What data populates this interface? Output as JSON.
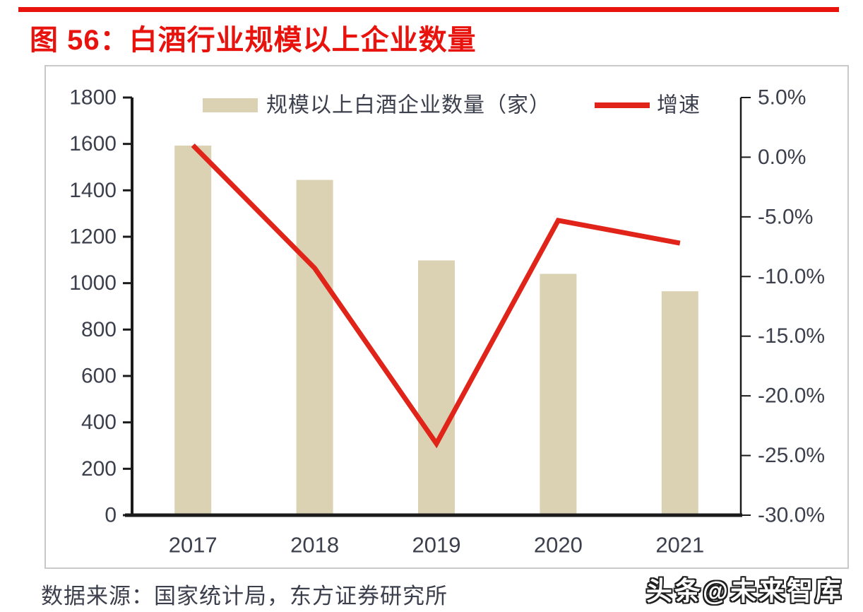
{
  "page": {
    "title": "图 56：白酒行业规模以上企业数量",
    "source": "数据来源：国家统计局，东方证券研究所",
    "watermark": "头条@未来智库"
  },
  "colors": {
    "accent_red": "#e8130d",
    "line_red": "#e02419",
    "bar_fill": "#dbd2b3",
    "axis_text": "#3c3f4c",
    "axis_line": "#1b1b1b",
    "panel_border": "#c9c9c9"
  },
  "chart_data": {
    "type": "bar",
    "subtype": "combo-bar-line",
    "title": "白酒行业规模以上企业数量",
    "categories": [
      "2017",
      "2018",
      "2019",
      "2020",
      "2021"
    ],
    "series": [
      {
        "name": "规模以上白酒企业数量（家）",
        "type": "bar",
        "axis": "left",
        "values": [
          1593,
          1445,
          1098,
          1040,
          965
        ]
      },
      {
        "name": "增速",
        "type": "line",
        "axis": "right",
        "unit": "%",
        "values": [
          1.0,
          -9.3,
          -24.0,
          -5.3,
          -7.2
        ]
      }
    ],
    "left_axis": {
      "min": 0,
      "max": 1800,
      "step": 200,
      "tick_labels": [
        "1800",
        "1600",
        "1400",
        "1200",
        "1000",
        "800",
        "600",
        "400",
        "200",
        "0"
      ]
    },
    "right_axis": {
      "min": -30,
      "max": 5,
      "step": 5,
      "tick_labels": [
        "5.0%",
        "0.0%",
        "-5.0%",
        "-10.0%",
        "-15.0%",
        "-20.0%",
        "-25.0%",
        "-30.0%"
      ]
    },
    "legend": {
      "position": "top",
      "entries": [
        "规模以上白酒企业数量（家）",
        "增速"
      ]
    },
    "grid": false
  }
}
